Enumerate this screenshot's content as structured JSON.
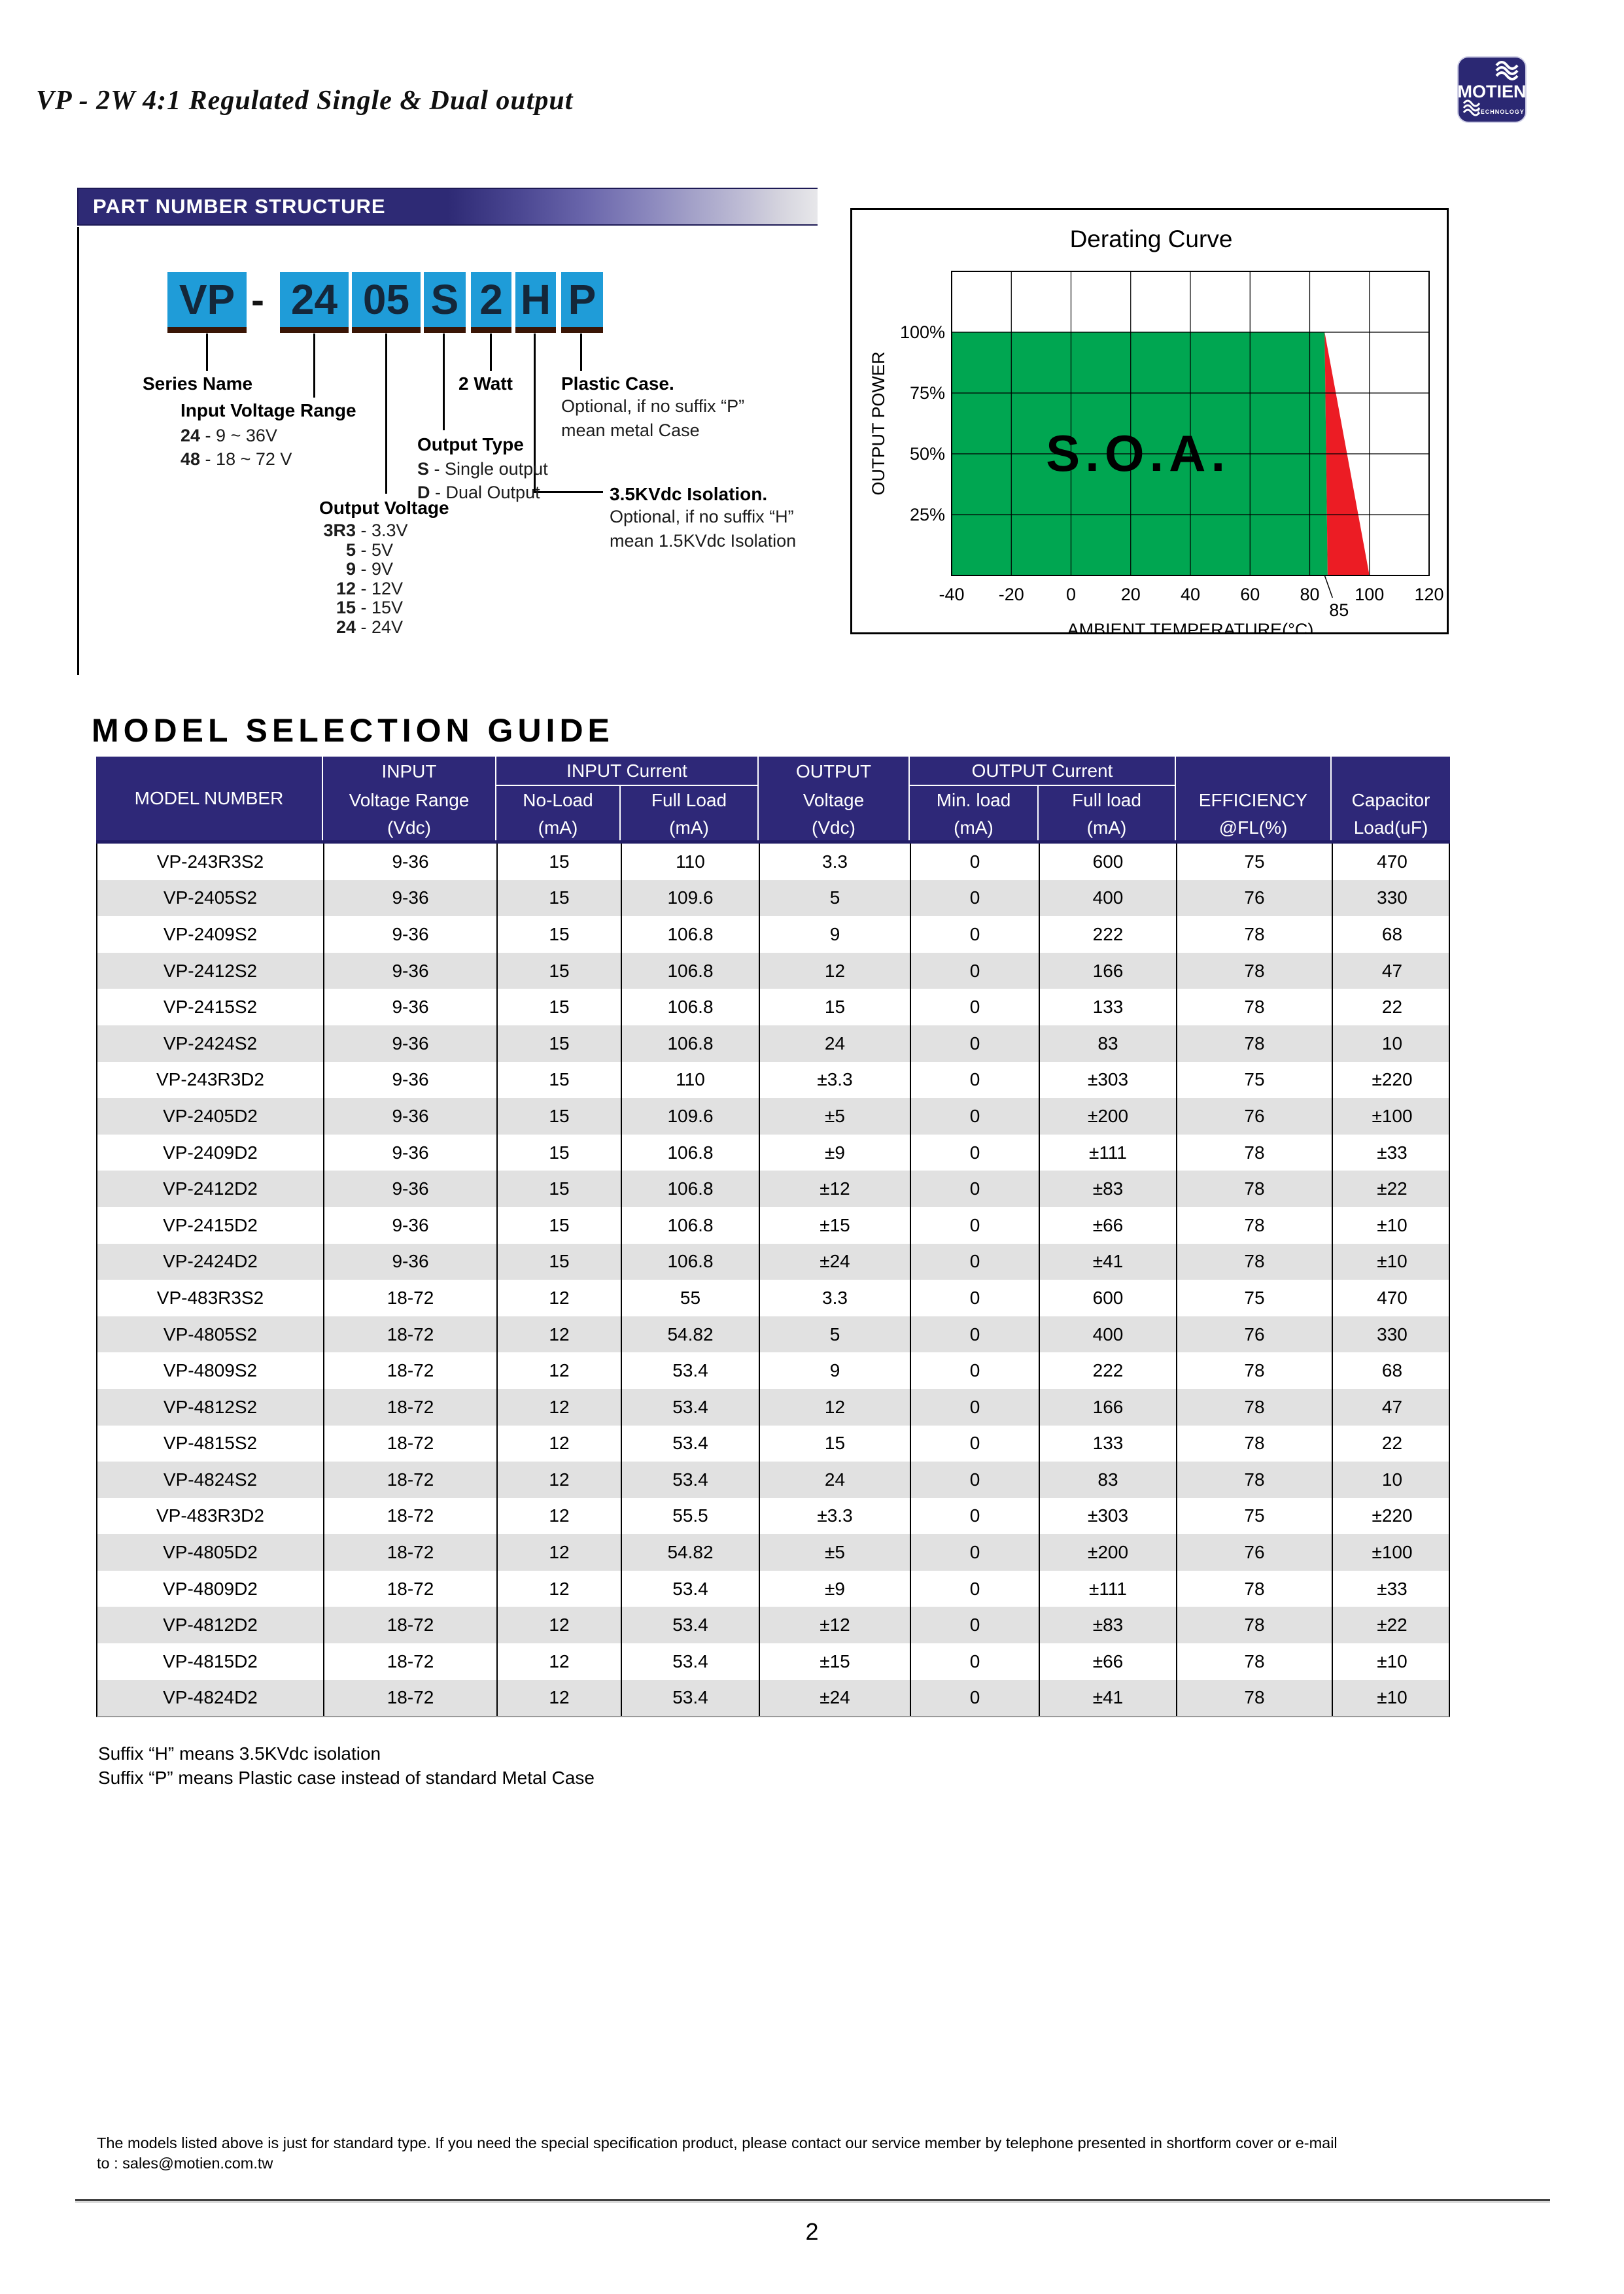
{
  "header": {
    "title": "VP - 2W 4:1 Regulated Single & Dual output",
    "logo": {
      "name": "MOTIEN",
      "subtitle": "TECHNOLOGY"
    }
  },
  "part_number": {
    "section_title": "PART NUMBER STRUCTURE",
    "boxes": [
      "VP",
      "24",
      "05",
      "S",
      "2",
      "H",
      "P"
    ],
    "separator": "-",
    "callouts": {
      "series_name": {
        "title": "Series Name"
      },
      "input_voltage": {
        "title": "Input Voltage Range",
        "items": [
          {
            "code": "24",
            "value": "9 ~ 36V"
          },
          {
            "code": "48",
            "value": "18 ~ 72 V"
          }
        ]
      },
      "output_voltage": {
        "title": "Output Voltage",
        "items": [
          {
            "code": "3R3",
            "value": "3.3V"
          },
          {
            "code": "5",
            "value": "5V"
          },
          {
            "code": "9",
            "value": "9V"
          },
          {
            "code": "12",
            "value": "12V"
          },
          {
            "code": "15",
            "value": "15V"
          },
          {
            "code": "24",
            "value": "24V"
          }
        ]
      },
      "output_type": {
        "title": "Output Type",
        "items": [
          {
            "code": "S",
            "value": "Single output"
          },
          {
            "code": "D",
            "value": "Dual Output"
          }
        ]
      },
      "watt": {
        "title": "2 Watt"
      },
      "plastic_case": {
        "title": "Plastic Case.",
        "lines": [
          "Optional, if no suffix “P”",
          "mean metal Case"
        ]
      },
      "isolation": {
        "title": "3.5KVdc Isolation.",
        "lines": [
          "Optional,  if no suffix “H”",
          "mean 1.5KVdc Isolation"
        ]
      }
    }
  },
  "chart_data": {
    "type": "area",
    "title": "Derating Curve",
    "xlabel": "AMBIENT TEMPERATURE(°C)",
    "ylabel": "OUTPUT POWER",
    "annotation": "S.O.A.",
    "x_ticks": [
      -40,
      -20,
      0,
      20,
      40,
      60,
      80,
      100,
      120
    ],
    "extra_x_tick": 85,
    "y_ticks_pct": [
      25,
      50,
      75,
      100
    ],
    "y_tick_labels": [
      "25%",
      "50%",
      "75%",
      "100%"
    ],
    "xlim": [
      -40,
      120
    ],
    "ylim_pct": [
      0,
      125
    ],
    "grid": true,
    "legend": false,
    "series": [
      {
        "name": "safe-operating-area",
        "color": "#00A651",
        "polygon": [
          [
            -40,
            0
          ],
          [
            -40,
            100
          ],
          [
            85,
            100
          ],
          [
            86,
            0
          ]
        ]
      },
      {
        "name": "derating-region",
        "color": "#EC1C24",
        "polygon": [
          [
            85,
            100
          ],
          [
            100,
            0
          ],
          [
            86,
            0
          ]
        ]
      }
    ],
    "derating_start_c": 85,
    "derating_end_c": 100
  },
  "model_table": {
    "title": "MODEL SELECTION GUIDE",
    "header": {
      "model": "MODEL NUMBER",
      "input_group": "INPUT",
      "input_label": "Voltage Range",
      "input_unit": "(Vdc)",
      "input_current_group": "INPUT Current",
      "noload_label": "No-Load",
      "noload_unit": "(mA)",
      "fullload_label": "Full Load",
      "fullload_unit": "(mA)",
      "output_group": "OUTPUT",
      "output_label": "Voltage",
      "output_unit": "(Vdc)",
      "output_current_group": "OUTPUT Current",
      "minload_label": "Min. load",
      "minload_unit": "(mA)",
      "out_fullload_label": "Full load",
      "out_fullload_unit": "(mA)",
      "efficiency_label": "EFFICIENCY",
      "efficiency_unit": "@FL(%)",
      "capacitor_label": "Capacitor",
      "capacitor_unit": "Load(uF)"
    },
    "rows": [
      [
        "VP-243R3S2",
        "9-36",
        "15",
        "110",
        "3.3",
        "0",
        "600",
        "75",
        "470"
      ],
      [
        "VP-2405S2",
        "9-36",
        "15",
        "109.6",
        "5",
        "0",
        "400",
        "76",
        "330"
      ],
      [
        "VP-2409S2",
        "9-36",
        "15",
        "106.8",
        "9",
        "0",
        "222",
        "78",
        "68"
      ],
      [
        "VP-2412S2",
        "9-36",
        "15",
        "106.8",
        "12",
        "0",
        "166",
        "78",
        "47"
      ],
      [
        "VP-2415S2",
        "9-36",
        "15",
        "106.8",
        "15",
        "0",
        "133",
        "78",
        "22"
      ],
      [
        "VP-2424S2",
        "9-36",
        "15",
        "106.8",
        "24",
        "0",
        "83",
        "78",
        "10"
      ],
      [
        "VP-243R3D2",
        "9-36",
        "15",
        "110",
        "±3.3",
        "0",
        "±303",
        "75",
        "±220"
      ],
      [
        "VP-2405D2",
        "9-36",
        "15",
        "109.6",
        "±5",
        "0",
        "±200",
        "76",
        "±100"
      ],
      [
        "VP-2409D2",
        "9-36",
        "15",
        "106.8",
        "±9",
        "0",
        "±111",
        "78",
        "±33"
      ],
      [
        "VP-2412D2",
        "9-36",
        "15",
        "106.8",
        "±12",
        "0",
        "±83",
        "78",
        "±22"
      ],
      [
        "VP-2415D2",
        "9-36",
        "15",
        "106.8",
        "±15",
        "0",
        "±66",
        "78",
        "±10"
      ],
      [
        "VP-2424D2",
        "9-36",
        "15",
        "106.8",
        "±24",
        "0",
        "±41",
        "78",
        "±10"
      ],
      [
        "VP-483R3S2",
        "18-72",
        "12",
        "55",
        "3.3",
        "0",
        "600",
        "75",
        "470"
      ],
      [
        "VP-4805S2",
        "18-72",
        "12",
        "54.82",
        "5",
        "0",
        "400",
        "76",
        "330"
      ],
      [
        "VP-4809S2",
        "18-72",
        "12",
        "53.4",
        "9",
        "0",
        "222",
        "78",
        "68"
      ],
      [
        "VP-4812S2",
        "18-72",
        "12",
        "53.4",
        "12",
        "0",
        "166",
        "78",
        "47"
      ],
      [
        "VP-4815S2",
        "18-72",
        "12",
        "53.4",
        "15",
        "0",
        "133",
        "78",
        "22"
      ],
      [
        "VP-4824S2",
        "18-72",
        "12",
        "53.4",
        "24",
        "0",
        "83",
        "78",
        "10"
      ],
      [
        "VP-483R3D2",
        "18-72",
        "12",
        "55.5",
        "±3.3",
        "0",
        "±303",
        "75",
        "±220"
      ],
      [
        "VP-4805D2",
        "18-72",
        "12",
        "54.82",
        "±5",
        "0",
        "±200",
        "76",
        "±100"
      ],
      [
        "VP-4809D2",
        "18-72",
        "12",
        "53.4",
        "±9",
        "0",
        "±111",
        "78",
        "±33"
      ],
      [
        "VP-4812D2",
        "18-72",
        "12",
        "53.4",
        "±12",
        "0",
        "±83",
        "78",
        "±22"
      ],
      [
        "VP-4815D2",
        "18-72",
        "12",
        "53.4",
        "±15",
        "0",
        "±66",
        "78",
        "±10"
      ],
      [
        "VP-4824D2",
        "18-72",
        "12",
        "53.4",
        "±24",
        "0",
        "±41",
        "78",
        "±10"
      ]
    ]
  },
  "notes": [
    "Suffix “H” means 3.5KVdc isolation",
    "Suffix “P” means Plastic case instead of standard Metal Case"
  ],
  "footer": {
    "line1": "The models listed above is just for standard type. If you need the special specification product, please contact our service member by telephone presented in shortform cover or e-mail",
    "line2": "to : sales@motien.com.tw",
    "page_number": "2"
  },
  "colors": {
    "header_navy": "#2E2878",
    "box_blue": "#1F9CD8",
    "box_underline": "#3A1505",
    "soa_green": "#00A651",
    "derate_red": "#EC1C24",
    "alt_row_gray": "#E1E1E1"
  }
}
